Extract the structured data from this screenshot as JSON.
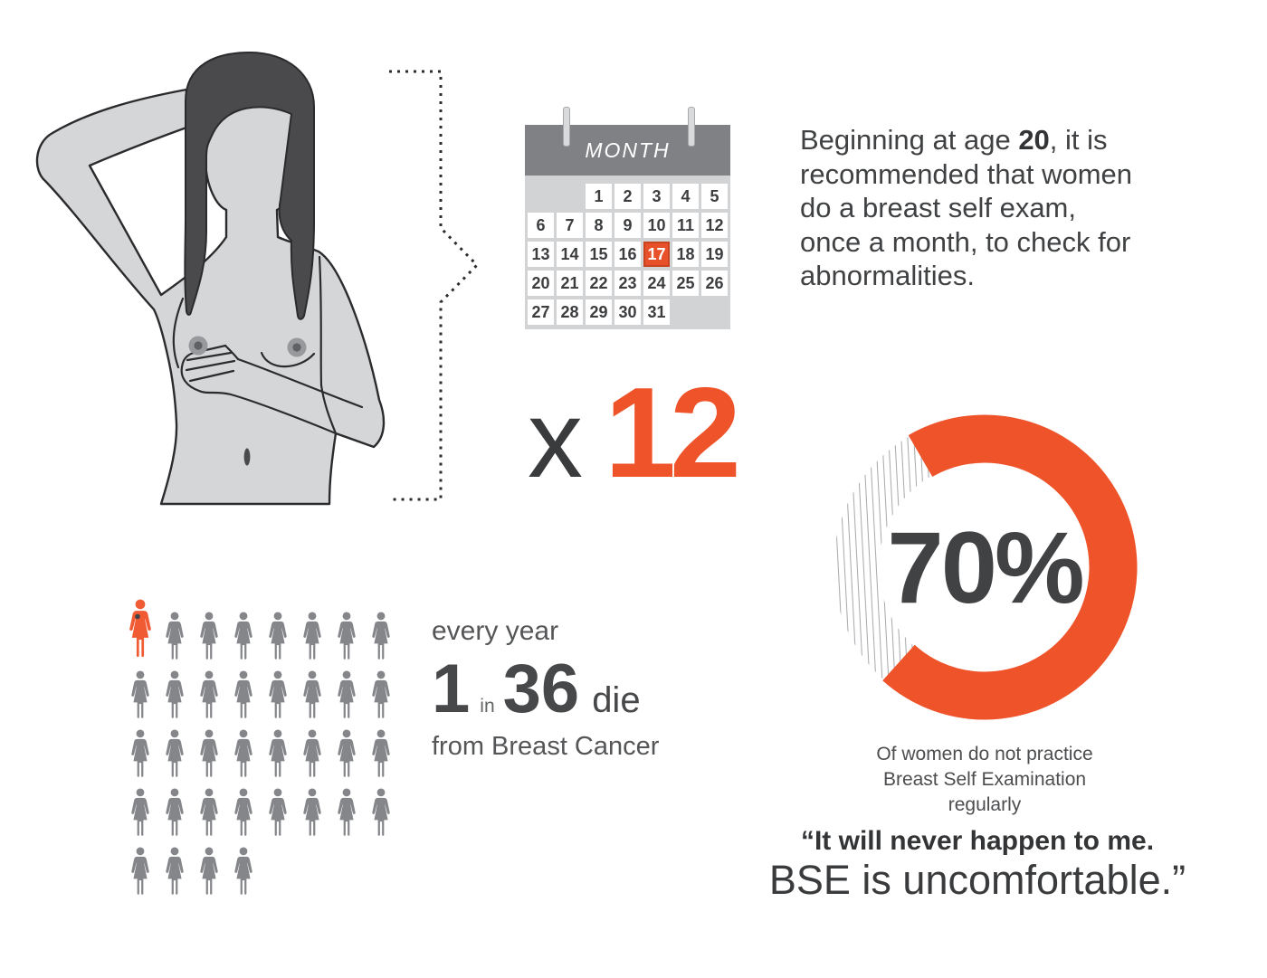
{
  "colors": {
    "accent": "#ee5329",
    "accent-figure": "#f15b33",
    "cal-hl": "#e8502a",
    "header-gray": "#808184",
    "panel-gray": "#d2d3d5",
    "body-gray": "#d5d6d7",
    "hair-gray": "#4a4a4c",
    "outline": "#2b2b2d",
    "figure-gray": "#84868a",
    "hatch": "#a9abae"
  },
  "calendar": {
    "month_label": "MONTH",
    "highlighted_day": "17",
    "weeks": [
      [
        "",
        "",
        "1",
        "2",
        "3",
        "4",
        "5"
      ],
      [
        "6",
        "7",
        "8",
        "9",
        "10",
        "11",
        "12"
      ],
      [
        "13",
        "14",
        "15",
        "16",
        "17",
        "18",
        "19"
      ],
      [
        "20",
        "21",
        "22",
        "23",
        "24",
        "25",
        "26"
      ],
      [
        "27",
        "28",
        "29",
        "30",
        "31",
        "",
        ""
      ]
    ]
  },
  "multiplier": {
    "symbol": "x",
    "value": "12"
  },
  "recommendation": {
    "line1_pre": "Beginning at age ",
    "line1_bold": "20",
    "line1_post": ", it is",
    "line2": "recommended that women",
    "line3": "do a breast self exam,",
    "line4": "once a month, to check for",
    "line5": "abnormalities."
  },
  "statistic": {
    "lead": "every year",
    "number1": "1",
    "conjunction": "in",
    "number2": "36",
    "verb": "die",
    "tail": "from Breast Cancer"
  },
  "pictogram": {
    "rows": [
      8,
      8,
      8,
      8,
      4
    ],
    "total": 36,
    "highlighted": 1
  },
  "donut": {
    "percent": 70,
    "center_label": "70%",
    "caption_line1": "Of women do not practice",
    "caption_line2": "Breast Self Examination",
    "caption_line3": "regularly"
  },
  "quote": {
    "line1": "“It will never happen to me.",
    "line2": "BSE is uncomfortable.”"
  },
  "chart_data": [
    {
      "type": "pie",
      "subtype": "donut",
      "title": "Of women do not practice Breast Self Examination regularly",
      "center_label": "70%",
      "slices": [
        {
          "label": "Do not practice BSE regularly",
          "value": 70,
          "color": "#ee5329"
        },
        {
          "label": "Remainder",
          "value": 30,
          "style": "gray diagonal hatch"
        }
      ],
      "legend_position": "none"
    },
    {
      "type": "pictogram",
      "title": "every year 1 in 36 die from Breast Cancer",
      "total": 36,
      "highlighted": 1,
      "rows": [
        8,
        8,
        8,
        8,
        4
      ],
      "highlight_color": "#f15b33",
      "base_color": "#84868a"
    },
    {
      "type": "calendar",
      "month_label": "MONTH",
      "days": 31,
      "highlighted_day": 17,
      "annotation": "x 12"
    }
  ]
}
